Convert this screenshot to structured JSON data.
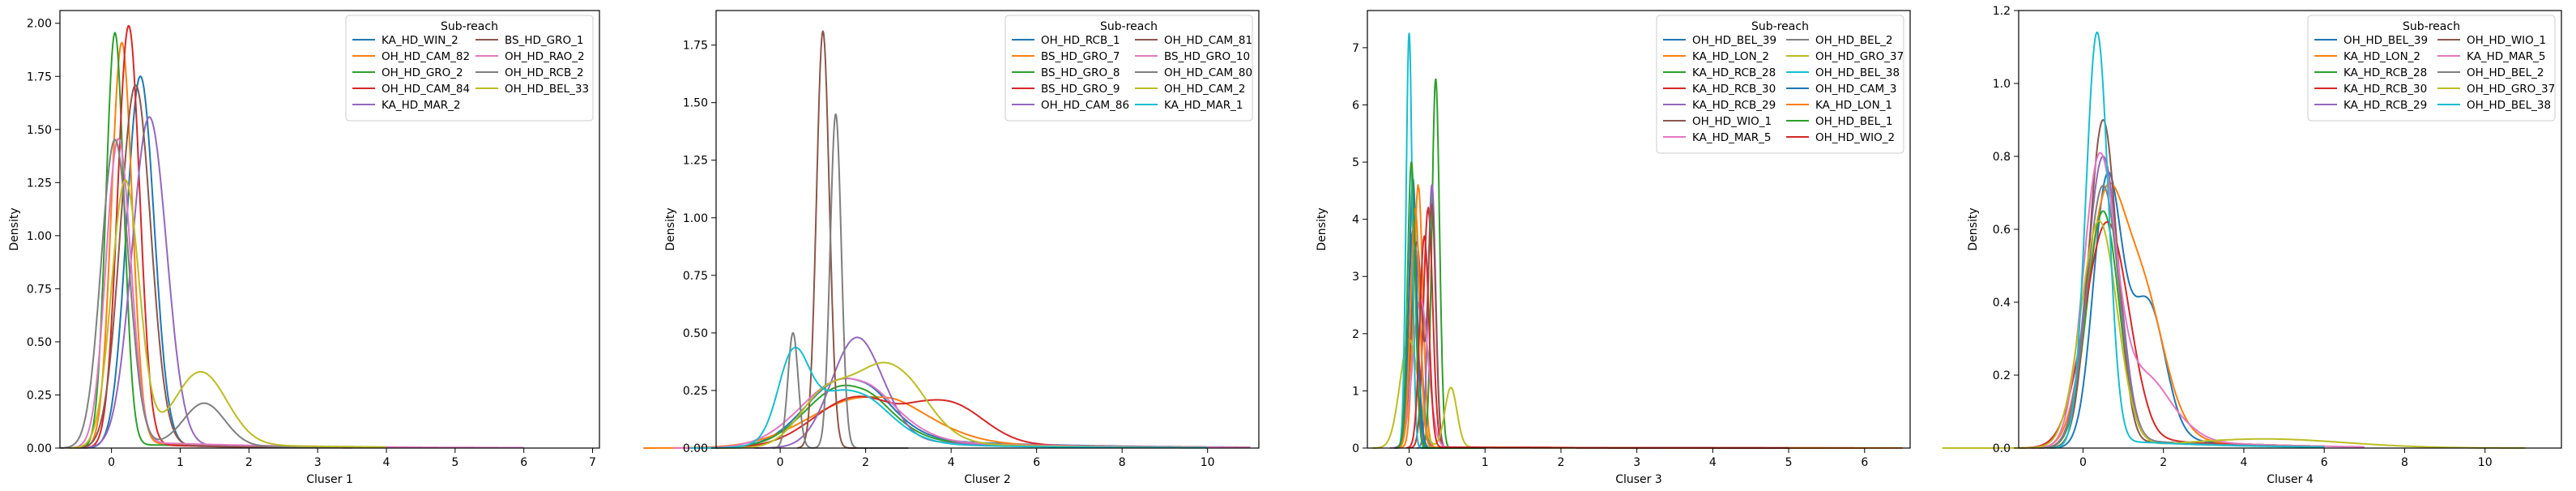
{
  "colors": {
    "C0": "#1f77b4",
    "C1": "#ff7f0e",
    "C2": "#2ca02c",
    "C3": "#d62728",
    "C4": "#9467bd",
    "C5": "#8c564b",
    "C6": "#e377c2",
    "C7": "#7f7f7f",
    "C8": "#bcbd22",
    "C9": "#17becf"
  },
  "chart_data": [
    {
      "type": "line",
      "xlabel": "Cluser 1",
      "ylabel": "Density",
      "xlim": [
        -0.75,
        7.1
      ],
      "ylim": [
        0,
        2.06
      ],
      "xticks": [
        0,
        1,
        2,
        3,
        4,
        5,
        6,
        7
      ],
      "yticks": [
        0.0,
        0.25,
        0.5,
        0.75,
        1.0,
        1.25,
        1.5,
        1.75,
        2.0
      ],
      "ytick_labels": [
        "0.00",
        "0.25",
        "0.50",
        "0.75",
        "1.00",
        "1.25",
        "1.50",
        "1.75",
        "2.00"
      ],
      "legend": {
        "title": "Sub-reach",
        "location": "upper right",
        "ncol": 2
      },
      "series": [
        {
          "name": "KA_HD_WIN_2",
          "color": "C0",
          "peaks": [
            [
              0.42,
              1.74,
              0.2
            ]
          ],
          "tail": {
            "amp": 0.02,
            "decay": 0.9,
            "start": 0.4
          },
          "xmax": 3.0
        },
        {
          "name": "OH_HD_CAM_82",
          "color": "C1",
          "peaks": [
            [
              0.15,
              1.9,
              0.15
            ]
          ],
          "tail": {
            "amp": 0.03,
            "decay": 0.8,
            "start": 0.3
          },
          "xmax": 3.5
        },
        {
          "name": "OH_HD_GRO_2",
          "color": "C2",
          "peaks": [
            [
              0.05,
              1.95,
              0.13
            ]
          ],
          "tail": {
            "amp": 0.02,
            "decay": 0.6,
            "start": 0.2
          },
          "xmax": 4.0
        },
        {
          "name": "OH_HD_CAM_84",
          "color": "C3",
          "peaks": [
            [
              0.25,
              1.98,
              0.16
            ]
          ],
          "tail": {
            "amp": 0.02,
            "decay": 0.8,
            "start": 0.3
          },
          "xmax": 3.5
        },
        {
          "name": "KA_HD_MAR_2",
          "color": "C4",
          "peaks": [
            [
              0.55,
              1.55,
              0.25
            ]
          ],
          "tail": {
            "amp": 0.02,
            "decay": 0.8,
            "start": 0.6
          },
          "xmax": 3.5
        },
        {
          "name": "BS_HD_GRO_1",
          "color": "C5",
          "peaks": [
            [
              0.35,
              1.7,
              0.22
            ]
          ],
          "tail": {
            "amp": 0.02,
            "decay": 0.7,
            "start": 0.4
          },
          "xmax": 3.5
        },
        {
          "name": "OH_HD_RAO_2",
          "color": "C6",
          "peaks": [
            [
              0.1,
              1.45,
              0.18
            ]
          ],
          "tail": {
            "amp": 0.03,
            "decay": 0.5,
            "start": 0.3
          },
          "xmax": 6.0
        },
        {
          "name": "OH_HD_RCB_2",
          "color": "C7",
          "peaks": [
            [
              0.05,
              1.45,
              0.2
            ],
            [
              1.35,
              0.2,
              0.3
            ]
          ],
          "tail": {
            "amp": 0.02,
            "decay": 0.6,
            "start": 0.4
          },
          "xmax": 3.5
        },
        {
          "name": "OH_HD_BEL_33",
          "color": "C8",
          "peaks": [
            [
              0.2,
              1.25,
              0.2
            ],
            [
              1.3,
              0.34,
              0.38
            ]
          ],
          "tail": {
            "amp": 0.03,
            "decay": 0.5,
            "start": 0.4
          },
          "xmax": 4.0
        }
      ]
    },
    {
      "type": "line",
      "xlabel": "Cluser 2",
      "ylabel": "Density",
      "xlim": [
        -1.5,
        11.2
      ],
      "ylim": [
        0,
        1.9
      ],
      "xticks": [
        0,
        2,
        4,
        6,
        8,
        10
      ],
      "yticks": [
        0.0,
        0.25,
        0.5,
        0.75,
        1.0,
        1.25,
        1.5,
        1.75
      ],
      "ytick_labels": [
        "0.00",
        "0.25",
        "0.50",
        "0.75",
        "1.00",
        "1.25",
        "1.50",
        "1.75"
      ],
      "legend": {
        "title": "Sub-reach",
        "location": "upper right",
        "ncol": 2
      },
      "series": [
        {
          "name": "OH_HD_RCB_1",
          "color": "C0",
          "peaks": [
            [
              1.5,
              0.3,
              0.9
            ]
          ],
          "tail": {
            "amp": 0.05,
            "decay": 0.3,
            "start": 2.0
          },
          "xmax": 11.0
        },
        {
          "name": "BS_HD_GRO_7",
          "color": "C1",
          "peaks": [
            [
              2.0,
              0.22,
              1.3
            ]
          ],
          "tail": {
            "amp": 0.03,
            "decay": 0.3,
            "start": 2.5
          },
          "xmax": 11.0
        },
        {
          "name": "BS_HD_GRO_8",
          "color": "C2",
          "peaks": [
            [
              1.5,
              0.27,
              0.9
            ]
          ],
          "tail": {
            "amp": 0.04,
            "decay": 0.3,
            "start": 2.0
          },
          "xmax": 11.0
        },
        {
          "name": "BS_HD_GRO_9",
          "color": "C3",
          "peaks": [
            [
              1.8,
              0.22,
              1.0
            ],
            [
              4.0,
              0.16,
              0.8
            ]
          ],
          "tail": {
            "amp": 0.03,
            "decay": 0.3,
            "start": 3.0
          },
          "xmax": 11.0
        },
        {
          "name": "OH_HD_CAM_86",
          "color": "C4",
          "peaks": [
            [
              1.8,
              0.48,
              0.6
            ]
          ],
          "tail": {
            "amp": 0.04,
            "decay": 0.4,
            "start": 2.5
          },
          "xmax": 10.0
        },
        {
          "name": "OH_HD_CAM_81",
          "color": "C5",
          "peaks": [
            [
              1.0,
              1.81,
              0.15
            ]
          ],
          "tail": {
            "amp": 0.0,
            "decay": 1.0,
            "start": 1.0
          },
          "xmax": 3.0
        },
        {
          "name": "BS_HD_GRO_10",
          "color": "C6",
          "peaks": [
            [
              1.5,
              0.3,
              1.0
            ]
          ],
          "tail": {
            "amp": 0.04,
            "decay": 0.3,
            "start": 2.0
          },
          "xmax": 11.0
        },
        {
          "name": "OH_HD_CAM_80",
          "color": "C7",
          "peaks": [
            [
              0.3,
              0.5,
              0.12
            ],
            [
              1.3,
              1.45,
              0.13
            ]
          ],
          "tail": {
            "amp": 0.0,
            "decay": 1.0,
            "start": 1.0
          },
          "xmax": 3.0
        },
        {
          "name": "OH_HD_CAM_2",
          "color": "C8",
          "peaks": [
            [
              1.0,
              0.2,
              0.6
            ],
            [
              2.5,
              0.36,
              0.8
            ]
          ],
          "tail": {
            "amp": 0.03,
            "decay": 0.4,
            "start": 3.0
          },
          "xmax": 10.0
        },
        {
          "name": "KA_HD_MAR_1",
          "color": "C9",
          "peaks": [
            [
              0.3,
              0.33,
              0.35
            ],
            [
              1.5,
              0.25,
              0.9
            ]
          ],
          "tail": {
            "amp": 0.03,
            "decay": 0.4,
            "start": 2.0
          },
          "xmax": 10.0
        }
      ]
    },
    {
      "type": "line",
      "xlabel": "Cluser 3",
      "ylabel": "Density",
      "xlim": [
        -0.55,
        6.6
      ],
      "ylim": [
        0,
        7.65
      ],
      "xticks": [
        0,
        1,
        2,
        3,
        4,
        5,
        6
      ],
      "yticks": [
        0,
        1,
        2,
        3,
        4,
        5,
        6,
        7
      ],
      "ytick_labels": [
        "0",
        "1",
        "2",
        "3",
        "4",
        "5",
        "6",
        "7"
      ],
      "legend": {
        "title": "Sub-reach",
        "location": "upper right",
        "ncol": 2
      },
      "series": [
        {
          "name": "OH_HD_BEL_39",
          "color": "C0",
          "peaks": [
            [
              0.05,
              4.7,
              0.05
            ]
          ],
          "tail": {
            "amp": 0.0,
            "decay": 1.0,
            "start": 0.2
          },
          "xmax": 1.0
        },
        {
          "name": "KA_HD_LON_2",
          "color": "C1",
          "peaks": [
            [
              0.12,
              4.6,
              0.06
            ]
          ],
          "tail": {
            "amp": 0.02,
            "decay": 0.5,
            "start": 0.2
          },
          "xmax": 6.5
        },
        {
          "name": "KA_HD_RCB_28",
          "color": "C2",
          "peaks": [
            [
              0.35,
              6.45,
              0.05
            ]
          ],
          "tail": {
            "amp": 0.0,
            "decay": 1.0,
            "start": 0.4
          },
          "xmax": 1.0
        },
        {
          "name": "KA_HD_RCB_30",
          "color": "C3",
          "peaks": [
            [
              0.25,
              4.2,
              0.06
            ]
          ],
          "tail": {
            "amp": 0.02,
            "decay": 0.6,
            "start": 0.3
          },
          "xmax": 6.0
        },
        {
          "name": "KA_HD_RCB_29",
          "color": "C4",
          "peaks": [
            [
              0.3,
              4.6,
              0.05
            ]
          ],
          "tail": {
            "amp": 0.0,
            "decay": 1.0,
            "start": 0.4
          },
          "xmax": 1.0
        },
        {
          "name": "OH_HD_WIO_1",
          "color": "C5",
          "peaks": [
            [
              0.1,
              3.6,
              0.07
            ],
            [
              0.3,
              4.2,
              0.05
            ]
          ],
          "tail": {
            "amp": 0.0,
            "decay": 1.0,
            "start": 0.4
          },
          "xmax": 1.0
        },
        {
          "name": "KA_HD_MAR_5",
          "color": "C6",
          "peaks": [
            [
              0.15,
              2.6,
              0.1
            ]
          ],
          "tail": {
            "amp": 0.02,
            "decay": 0.6,
            "start": 0.3
          },
          "xmax": 4.0
        },
        {
          "name": "OH_HD_BEL_2",
          "color": "C7",
          "peaks": [
            [
              0.08,
              3.5,
              0.07
            ]
          ],
          "tail": {
            "amp": 0.0,
            "decay": 1.0,
            "start": 0.3
          },
          "xmax": 1.0
        },
        {
          "name": "OH_HD_GRO_37",
          "color": "C8",
          "peaks": [
            [
              0.0,
              1.9,
              0.12
            ],
            [
              0.55,
              1.05,
              0.08
            ]
          ],
          "tail": {
            "amp": 0.02,
            "decay": 0.6,
            "start": 0.6
          },
          "xmax": 3.0
        },
        {
          "name": "OH_HD_BEL_38",
          "color": "C9",
          "peaks": [
            [
              0.0,
              7.25,
              0.04
            ]
          ],
          "tail": {
            "amp": 0.0,
            "decay": 1.0,
            "start": 0.2
          },
          "xmax": 1.0
        },
        {
          "name": "OH_HD_CAM_3",
          "color": "C0",
          "peaks": [
            [
              0.05,
              3.8,
              0.06
            ]
          ],
          "tail": {
            "amp": 0.0,
            "decay": 1.0,
            "start": 0.2
          },
          "xmax": 1.0
        },
        {
          "name": "KA_HD_LON_1",
          "color": "C1",
          "peaks": [
            [
              0.08,
              4.2,
              0.06
            ]
          ],
          "tail": {
            "amp": 0.01,
            "decay": 0.5,
            "start": 0.2
          },
          "xmax": 6.0
        },
        {
          "name": "OH_HD_BEL_1",
          "color": "C2",
          "peaks": [
            [
              0.03,
              5.0,
              0.05
            ]
          ],
          "tail": {
            "amp": 0.0,
            "decay": 1.0,
            "start": 0.2
          },
          "xmax": 1.0
        },
        {
          "name": "OH_HD_WIO_2",
          "color": "C3",
          "peaks": [
            [
              0.2,
              3.7,
              0.06
            ]
          ],
          "tail": {
            "amp": 0.02,
            "decay": 0.6,
            "start": 0.3
          },
          "xmax": 5.0
        }
      ]
    },
    {
      "type": "line",
      "xlabel": "Cluser 4",
      "ylabel": "Density",
      "xlim": [
        -1.6,
        11.9
      ],
      "ylim": [
        0,
        1.2
      ],
      "xticks": [
        0,
        2,
        4,
        6,
        8,
        10
      ],
      "yticks": [
        0.0,
        0.2,
        0.4,
        0.6,
        0.8,
        1.0,
        1.2
      ],
      "ytick_labels": [
        "0.0",
        "0.2",
        "0.4",
        "0.6",
        "0.8",
        "1.0",
        "1.2"
      ],
      "legend": {
        "title": "Sub-reach",
        "location": "upper right",
        "ncol": 2
      },
      "series": [
        {
          "name": "OH_HD_BEL_39",
          "color": "C0",
          "peaks": [
            [
              0.6,
              0.72,
              0.35
            ],
            [
              1.6,
              0.4,
              0.45
            ]
          ],
          "tail": {
            "amp": 0.02,
            "decay": 0.4,
            "start": 2.5
          },
          "xmax": 6.0
        },
        {
          "name": "KA_HD_LON_2",
          "color": "C1",
          "peaks": [
            [
              0.5,
              0.55,
              0.45
            ],
            [
              1.4,
              0.45,
              0.6
            ]
          ],
          "tail": {
            "amp": 0.02,
            "decay": 0.4,
            "start": 2.5
          },
          "xmax": 6.0
        },
        {
          "name": "KA_HD_RCB_28",
          "color": "C2",
          "peaks": [
            [
              0.5,
              0.65,
              0.4
            ]
          ],
          "tail": {
            "amp": 0.02,
            "decay": 0.4,
            "start": 1.5
          },
          "xmax": 6.0
        },
        {
          "name": "KA_HD_RCB_30",
          "color": "C3",
          "peaks": [
            [
              0.6,
              0.62,
              0.55
            ]
          ],
          "tail": {
            "amp": 0.02,
            "decay": 0.4,
            "start": 2.0
          },
          "xmax": 6.0
        },
        {
          "name": "KA_HD_RCB_29",
          "color": "C4",
          "peaks": [
            [
              0.5,
              0.8,
              0.4
            ]
          ],
          "tail": {
            "amp": 0.02,
            "decay": 0.4,
            "start": 1.5
          },
          "xmax": 6.0
        },
        {
          "name": "OH_HD_WIO_1",
          "color": "C5",
          "peaks": [
            [
              0.5,
              0.9,
              0.35
            ]
          ],
          "tail": {
            "amp": 0.02,
            "decay": 0.4,
            "start": 1.5
          },
          "xmax": 6.0
        },
        {
          "name": "KA_HD_MAR_5",
          "color": "C6",
          "peaks": [
            [
              0.4,
              0.75,
              0.4
            ],
            [
              1.5,
              0.2,
              0.7
            ]
          ],
          "tail": {
            "amp": 0.02,
            "decay": 0.4,
            "start": 2.5
          },
          "xmax": 7.0
        },
        {
          "name": "OH_HD_BEL_2",
          "color": "C7",
          "peaks": [
            [
              0.5,
              0.72,
              0.4
            ]
          ],
          "tail": {
            "amp": 0.02,
            "decay": 0.4,
            "start": 1.5
          },
          "xmax": 6.0
        },
        {
          "name": "OH_HD_GRO_37",
          "color": "C8",
          "peaks": [
            [
              0.4,
              0.62,
              0.45
            ],
            [
              4.5,
              0.025,
              2.0
            ]
          ],
          "tail": {
            "amp": 0.0,
            "decay": 1.0,
            "start": 1.5
          },
          "xmax": 11.0
        },
        {
          "name": "OH_HD_BEL_38",
          "color": "C9",
          "peaks": [
            [
              0.35,
              1.14,
              0.28
            ]
          ],
          "tail": {
            "amp": 0.02,
            "decay": 0.4,
            "start": 1.0
          },
          "xmax": 6.0
        }
      ]
    }
  ]
}
